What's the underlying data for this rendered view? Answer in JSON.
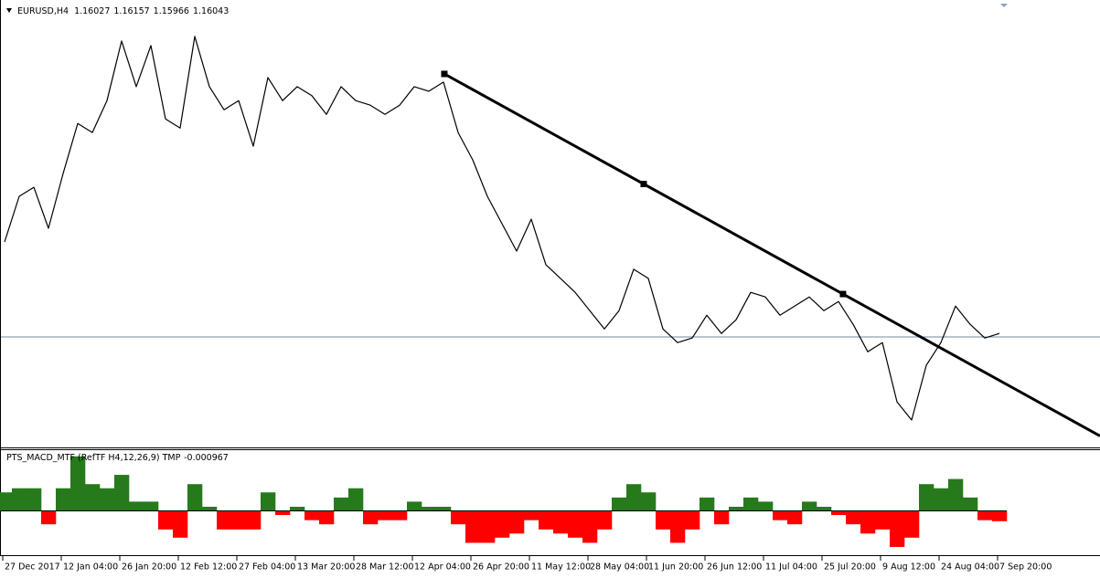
{
  "chart_data": [
    {
      "type": "line",
      "symbol": "EURUSD,H4",
      "ohlc": [
        1.16027,
        1.16157,
        1.15966,
        1.16043
      ],
      "time_labels": [
        "27 Dec 2017",
        "12 Jan 04:00",
        "26 Jan 20:00",
        "12 Feb 12:00",
        "27 Feb 04:00",
        "13 Mar 20:00",
        "28 Mar 12:00",
        "12 Apr 04:00",
        "26 Apr 20:00",
        "11 May 12:00",
        "28 May 04:00",
        "11 Jun 20:00",
        "26 Jun 12:00",
        "11 Jul 04:00",
        "25 Jul 20:00",
        "9 Aug 12:00",
        "24 Aug 04:00",
        "7 Sep 20:00"
      ],
      "series": [
        {
          "name": "EURUSD,H4",
          "color": "#000000",
          "values": [
            1.1896,
            1.2036,
            1.2064,
            1.1938,
            1.2106,
            1.226,
            1.2232,
            1.233,
            1.2513,
            1.2373,
            1.2499,
            1.2274,
            1.2246,
            1.2527,
            1.2373,
            1.2302,
            1.233,
            1.219,
            1.2401,
            1.233,
            1.2373,
            1.2345,
            1.2288,
            1.2373,
            1.233,
            1.2316,
            1.2288,
            1.2316,
            1.2373,
            1.2359,
            1.2387,
            1.2232,
            1.2148,
            1.2036,
            1.1952,
            1.1868,
            1.1966,
            1.1826,
            1.1784,
            1.1741,
            1.1685,
            1.1629,
            1.1685,
            1.1812,
            1.1784,
            1.1629,
            1.1587,
            1.1601,
            1.1671,
            1.1615,
            1.1657,
            1.1741,
            1.1727,
            1.1671,
            1.1699,
            1.1727,
            1.1685,
            1.1713,
            1.1643,
            1.1559,
            1.1587,
            1.1405,
            1.1349,
            1.1517,
            1.1587,
            1.1699,
            1.1643,
            1.1601,
            1.1615
          ]
        }
      ],
      "trendline": {
        "color": "#000000",
        "x": [
          30.06,
          57.31
        ],
        "values": [
          1.2412,
          1.1736
        ]
      },
      "ylim": [
        1.1265,
        1.2639
      ]
    },
    {
      "type": "bar",
      "title": "PTS_MACD_MTF (RefTF H4,12,26,9) TMP",
      "current": -0.000967,
      "positive_color": "#267a1c",
      "negative_color": "#ff0000",
      "values": [
        0.0018,
        0.0022,
        0.0022,
        -0.0013,
        0.0022,
        0.0053,
        0.0026,
        0.0022,
        0.0035,
        0.0009,
        0.0009,
        -0.0018,
        -0.0026,
        0.0026,
        0.0004,
        -0.0018,
        -0.0018,
        -0.0018,
        0.0018,
        -0.0004,
        0.0004,
        -0.0009,
        -0.0013,
        0.0013,
        0.0022,
        -0.0013,
        -0.0009,
        -0.0009,
        0.0009,
        0.0004,
        0.0004,
        -0.0013,
        -0.0031,
        -0.0031,
        -0.0026,
        -0.0022,
        -0.0009,
        -0.0018,
        -0.0022,
        -0.0026,
        -0.0031,
        -0.0018,
        0.0013,
        0.0026,
        0.0018,
        -0.0018,
        -0.0031,
        -0.0018,
        0.0013,
        -0.0013,
        0.0004,
        0.0013,
        0.0009,
        -0.0009,
        -0.0013,
        0.0009,
        0.0004,
        -0.0004,
        -0.0013,
        -0.0022,
        -0.0018,
        -0.0035,
        -0.0026,
        0.0026,
        0.0022,
        0.0031,
        0.0013,
        -0.0009,
        -0.001
      ],
      "ylim": [
        -0.0043,
        0.0059
      ]
    }
  ]
}
